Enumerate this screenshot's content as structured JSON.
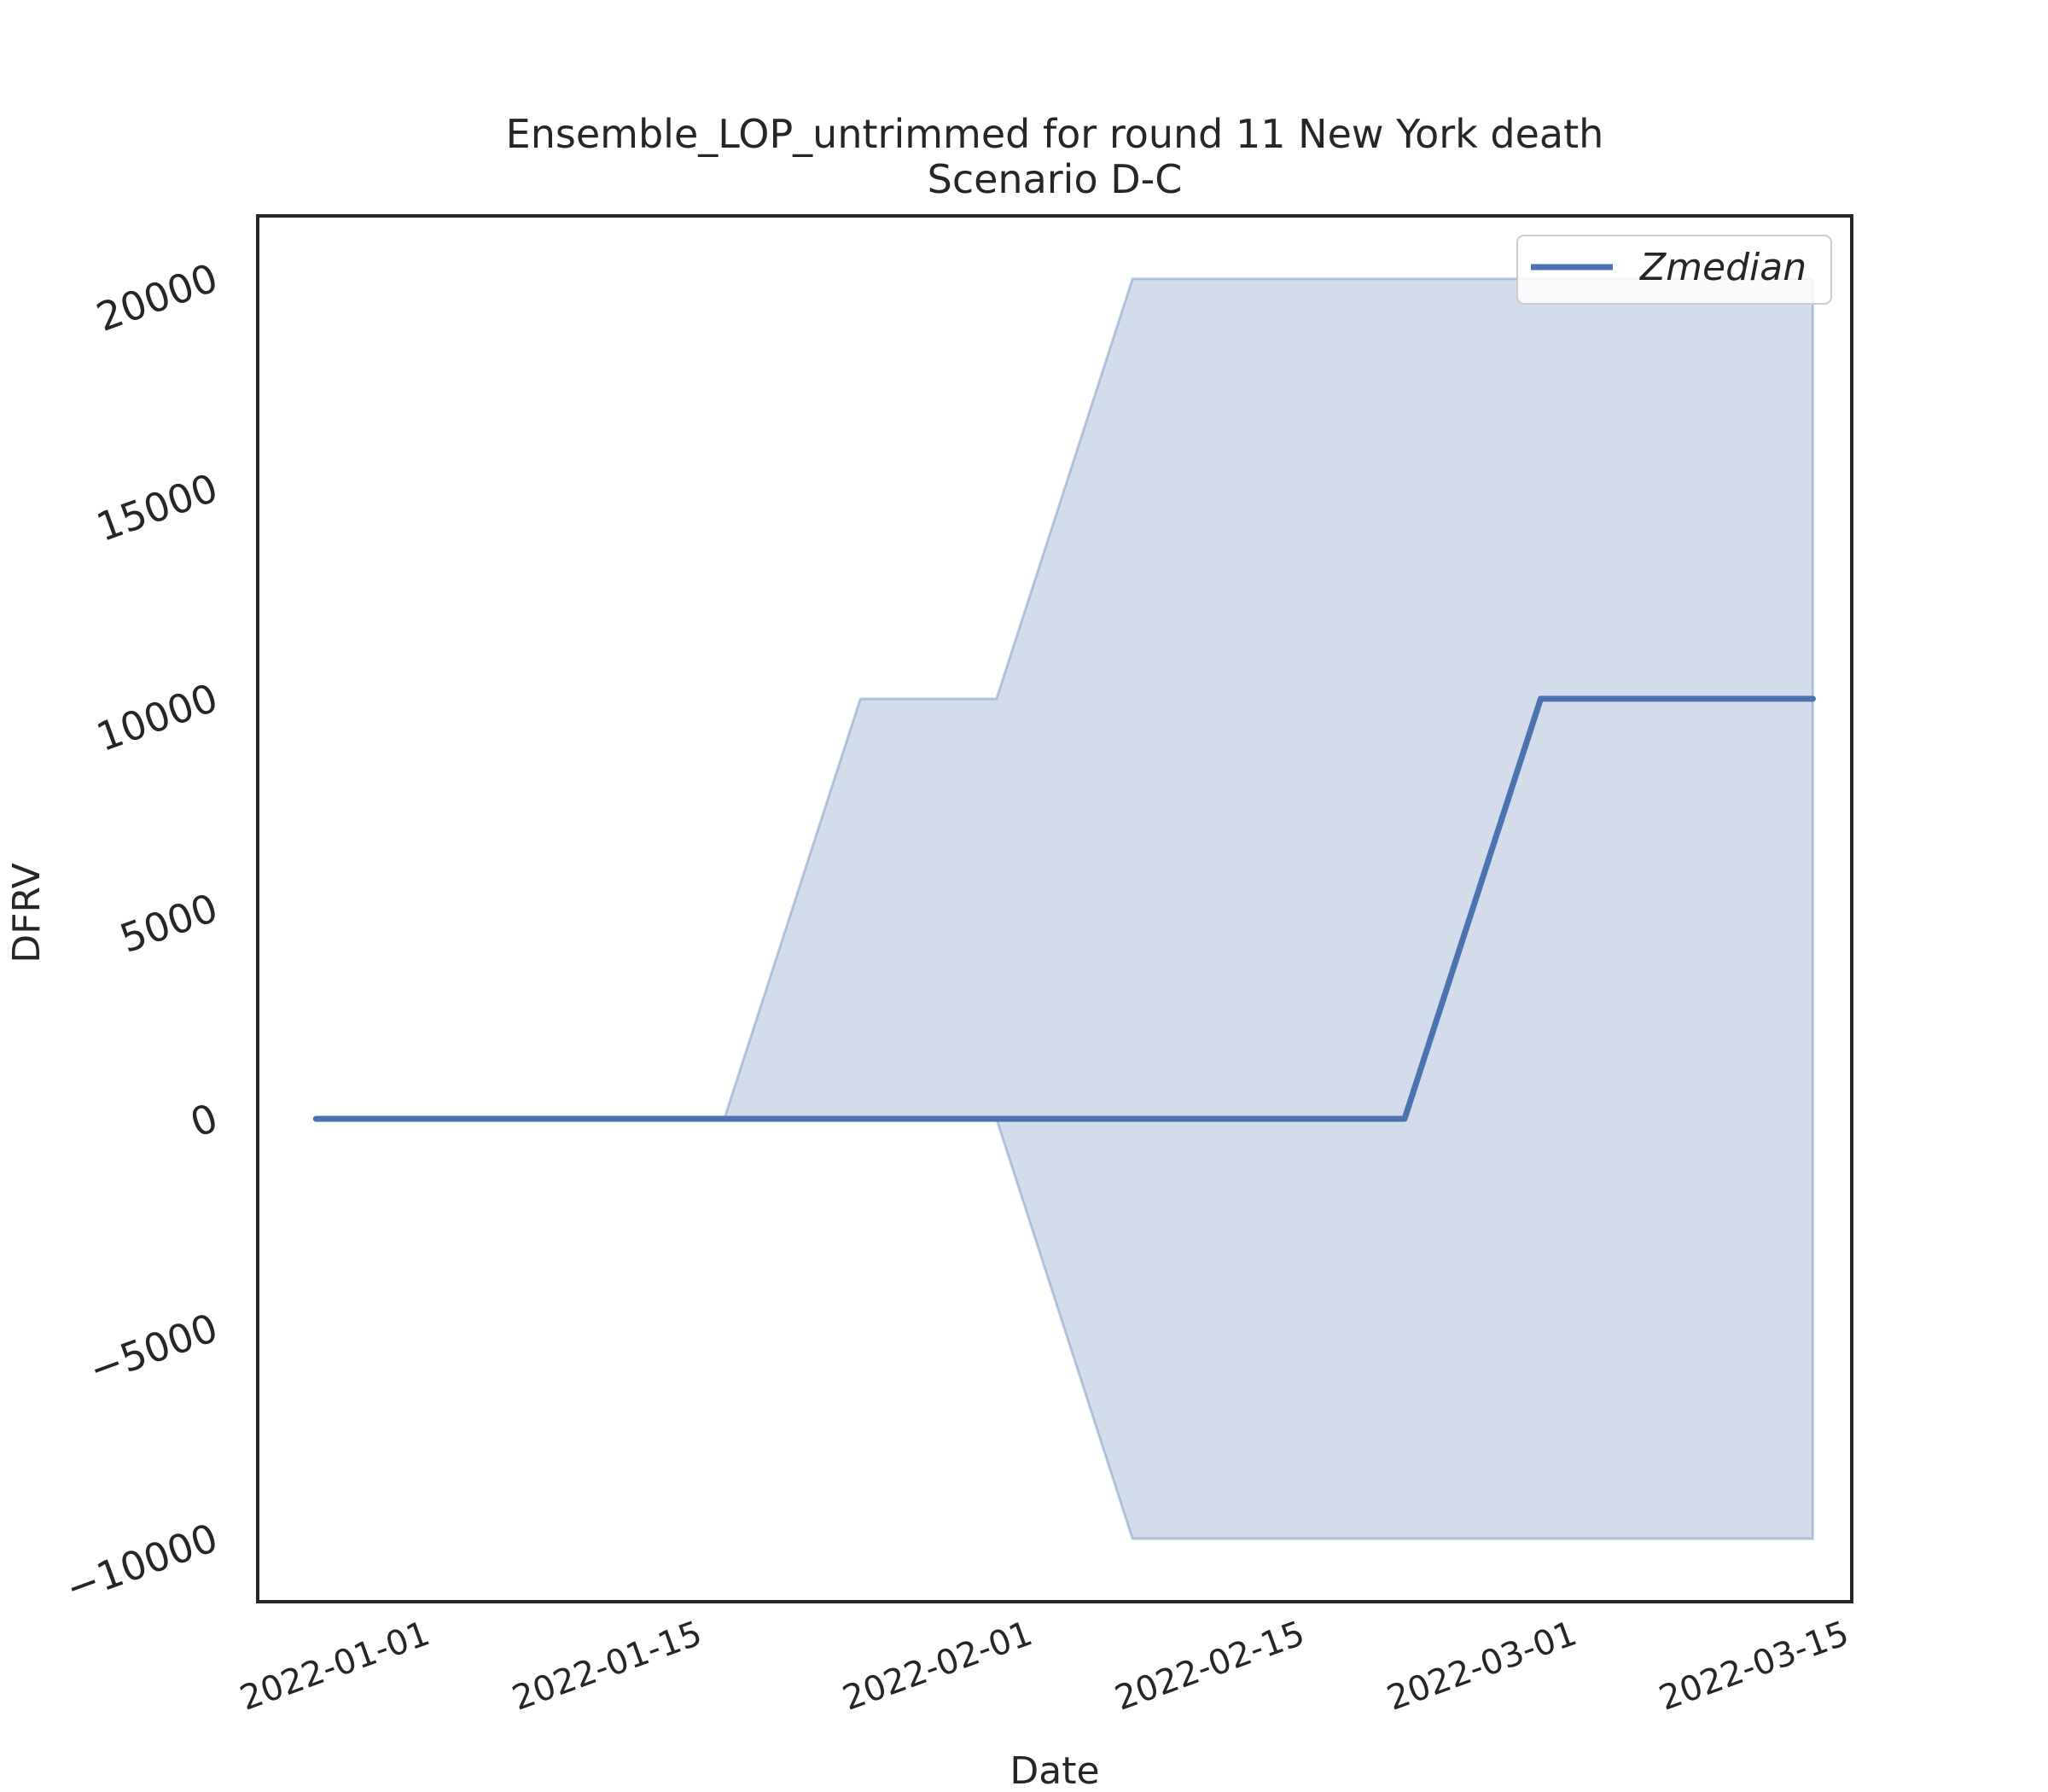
{
  "chart_data": {
    "type": "area",
    "title": "Ensemble_LOP_untrimmed for round 11 New York death",
    "subtitle": "Scenario D-C",
    "xlabel": "Date",
    "ylabel": "DFRV",
    "x_ticks": [
      "2022-01-01",
      "2022-01-15",
      "2022-02-01",
      "2022-02-15",
      "2022-03-01",
      "2022-03-15"
    ],
    "y_ticks": [
      20000,
      15000,
      10000,
      5000,
      0,
      -5000,
      -10000
    ],
    "y_tick_labels": [
      "20000",
      "15000",
      "10000",
      "5000",
      "0",
      "−5000",
      "−10000"
    ],
    "xlim": [
      "2021-12-24",
      "2022-03-16"
    ],
    "ylim": [
      -11500,
      21500
    ],
    "grid": false,
    "legend": {
      "position": "top-right",
      "entries": [
        "Zmedian"
      ]
    },
    "colors": {
      "line": "#4c72b0",
      "band": "#4c72b0",
      "axes": "#262626"
    },
    "x": [
      "2021-12-27",
      "2022-01-03",
      "2022-01-10",
      "2022-01-17",
      "2022-01-24",
      "2022-01-31",
      "2022-02-07",
      "2022-02-14",
      "2022-02-21",
      "2022-02-28",
      "2022-03-07",
      "2022-03-14"
    ],
    "series": [
      {
        "name": "Zmedian",
        "role": "median",
        "values": [
          0,
          0,
          0,
          0,
          0,
          0,
          0,
          0,
          0,
          10000,
          10000,
          10000
        ]
      },
      {
        "role": "upper",
        "values": [
          0,
          0,
          0,
          0,
          10000,
          10000,
          20000,
          20000,
          20000,
          20000,
          20000,
          20000
        ]
      },
      {
        "role": "lower",
        "values": [
          0,
          0,
          0,
          0,
          0,
          0,
          -10000,
          -10000,
          -10000,
          -10000,
          -10000,
          -10000
        ]
      }
    ]
  }
}
